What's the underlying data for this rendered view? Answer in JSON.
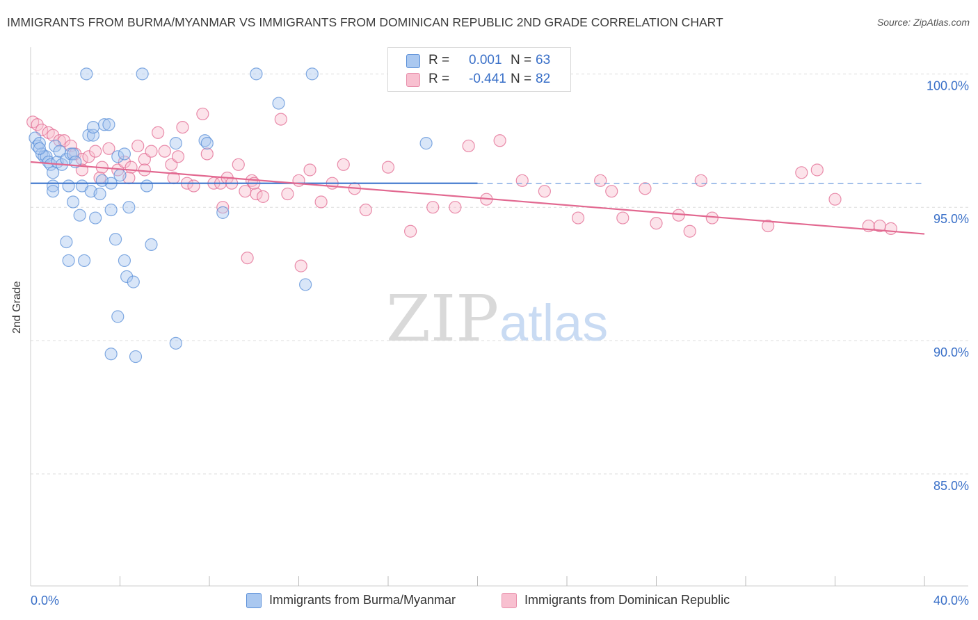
{
  "title": "IMMIGRANTS FROM BURMA/MYANMAR VS IMMIGRANTS FROM DOMINICAN REPUBLIC 2ND GRADE CORRELATION CHART",
  "source": "Source: ZipAtlas.com",
  "watermark": {
    "zip": "ZIP",
    "atlas": "atlas"
  },
  "legend": {
    "r_label": "R =",
    "n_label": "N =",
    "rows": [
      {
        "r": "0.001",
        "n": "63",
        "color": "#aac8f0",
        "border": "#5a8fd8"
      },
      {
        "r": "-0.441",
        "n": "82",
        "color": "#f8c0d0",
        "border": "#e890ac"
      }
    ]
  },
  "chart_data": {
    "type": "scatter",
    "xlabel": "",
    "ylabel": "2nd Grade",
    "xlim": [
      0,
      40
    ],
    "ylim": [
      80.8,
      101.0
    ],
    "x_tick_labels": [
      "0.0%",
      "40.0%"
    ],
    "y_ticks": [
      100,
      95,
      90,
      85
    ],
    "y_tick_labels": [
      "100.0%",
      "95.0%",
      "90.0%",
      "85.0%"
    ],
    "grid": true,
    "series": [
      {
        "name": "Immigrants from Burma/Myanmar",
        "color": "#5a8fd8",
        "fill": "#aac8f0",
        "trend": {
          "x0": 0,
          "y0": 95.9,
          "x1": 20,
          "y1": 95.9,
          "dash_to": 40
        },
        "points": [
          [
            0.2,
            97.6
          ],
          [
            0.3,
            97.3
          ],
          [
            0.4,
            97.4
          ],
          [
            0.5,
            97.0
          ],
          [
            0.6,
            96.9
          ],
          [
            0.7,
            96.9
          ],
          [
            0.8,
            96.7
          ],
          [
            0.9,
            96.6
          ],
          [
            1.0,
            96.3
          ],
          [
            1.1,
            97.3
          ],
          [
            1.2,
            96.7
          ],
          [
            1.3,
            97.1
          ],
          [
            1.4,
            96.6
          ],
          [
            1.6,
            96.8
          ],
          [
            1.8,
            97.0
          ],
          [
            1.9,
            97.0
          ],
          [
            2.0,
            96.7
          ],
          [
            2.5,
            100.0
          ],
          [
            2.6,
            97.7
          ],
          [
            2.8,
            97.7
          ],
          [
            3.3,
            98.1
          ],
          [
            3.5,
            98.1
          ],
          [
            3.9,
            96.9
          ],
          [
            4.2,
            97.0
          ],
          [
            5.0,
            100.0
          ],
          [
            2.8,
            98.0
          ],
          [
            1.7,
            95.8
          ],
          [
            1.0,
            95.8
          ],
          [
            2.3,
            95.8
          ],
          [
            2.7,
            95.6
          ],
          [
            3.6,
            95.9
          ],
          [
            3.2,
            96.0
          ],
          [
            4.0,
            96.2
          ],
          [
            5.2,
            95.8
          ],
          [
            1.0,
            95.6
          ],
          [
            1.9,
            95.2
          ],
          [
            3.1,
            95.5
          ],
          [
            4.4,
            95.0
          ],
          [
            2.2,
            94.7
          ],
          [
            2.9,
            94.6
          ],
          [
            3.6,
            94.9
          ],
          [
            1.6,
            93.7
          ],
          [
            3.8,
            93.8
          ],
          [
            5.4,
            93.6
          ],
          [
            1.7,
            93.0
          ],
          [
            2.4,
            93.0
          ],
          [
            4.2,
            93.0
          ],
          [
            4.3,
            92.4
          ],
          [
            4.6,
            92.2
          ],
          [
            3.9,
            90.9
          ],
          [
            6.5,
            89.9
          ],
          [
            3.6,
            89.5
          ],
          [
            4.7,
            89.4
          ],
          [
            10.1,
            100.0
          ],
          [
            12.6,
            100.0
          ],
          [
            11.1,
            98.9
          ],
          [
            7.8,
            97.5
          ],
          [
            7.9,
            97.4
          ],
          [
            17.7,
            97.4
          ],
          [
            8.6,
            94.8
          ],
          [
            12.3,
            92.1
          ],
          [
            0.4,
            97.2
          ],
          [
            6.5,
            97.4
          ]
        ]
      },
      {
        "name": "Immigrants from Dominican Republic",
        "color": "#e26890",
        "fill": "#f8c0d0",
        "trend": {
          "x0": 0,
          "y0": 96.7,
          "x1": 40,
          "y1": 94.0
        },
        "points": [
          [
            0.1,
            98.2
          ],
          [
            0.3,
            98.1
          ],
          [
            0.5,
            97.9
          ],
          [
            0.8,
            97.8
          ],
          [
            1.0,
            97.7
          ],
          [
            1.3,
            97.5
          ],
          [
            1.5,
            97.5
          ],
          [
            1.8,
            97.3
          ],
          [
            2.0,
            97.0
          ],
          [
            2.3,
            96.8
          ],
          [
            2.6,
            96.9
          ],
          [
            2.9,
            97.1
          ],
          [
            3.2,
            96.5
          ],
          [
            3.5,
            97.2
          ],
          [
            3.9,
            96.4
          ],
          [
            4.2,
            96.7
          ],
          [
            4.5,
            96.5
          ],
          [
            4.8,
            97.3
          ],
          [
            5.1,
            96.8
          ],
          [
            5.4,
            97.1
          ],
          [
            5.7,
            97.8
          ],
          [
            6.0,
            97.1
          ],
          [
            6.3,
            96.6
          ],
          [
            6.6,
            96.9
          ],
          [
            2.3,
            96.4
          ],
          [
            3.1,
            96.1
          ],
          [
            4.4,
            96.1
          ],
          [
            5.1,
            96.4
          ],
          [
            6.4,
            96.1
          ],
          [
            6.8,
            98.0
          ],
          [
            7.0,
            95.9
          ],
          [
            7.3,
            95.8
          ],
          [
            7.7,
            98.5
          ],
          [
            7.9,
            97.0
          ],
          [
            8.2,
            95.9
          ],
          [
            8.5,
            95.9
          ],
          [
            8.8,
            96.1
          ],
          [
            9.0,
            95.9
          ],
          [
            9.3,
            96.6
          ],
          [
            9.6,
            95.6
          ],
          [
            9.9,
            96.0
          ],
          [
            10.1,
            95.5
          ],
          [
            10.4,
            95.4
          ],
          [
            11.2,
            98.3
          ],
          [
            11.5,
            95.5
          ],
          [
            12.0,
            96.0
          ],
          [
            12.5,
            96.4
          ],
          [
            13.0,
            95.2
          ],
          [
            13.5,
            95.9
          ],
          [
            14.0,
            96.6
          ],
          [
            14.5,
            95.7
          ],
          [
            15.0,
            94.9
          ],
          [
            16.0,
            96.5
          ],
          [
            17.0,
            94.1
          ],
          [
            18.0,
            95.0
          ],
          [
            19.0,
            95.0
          ],
          [
            19.6,
            97.3
          ],
          [
            20.4,
            95.3
          ],
          [
            21.0,
            97.5
          ],
          [
            22.0,
            96.0
          ],
          [
            23.0,
            95.6
          ],
          [
            24.5,
            94.6
          ],
          [
            25.5,
            96.0
          ],
          [
            26.0,
            95.6
          ],
          [
            26.5,
            94.6
          ],
          [
            27.5,
            95.7
          ],
          [
            28.0,
            94.4
          ],
          [
            29.0,
            94.7
          ],
          [
            29.5,
            94.1
          ],
          [
            30.0,
            96.0
          ],
          [
            30.5,
            94.6
          ],
          [
            33.0,
            94.3
          ],
          [
            34.5,
            96.3
          ],
          [
            35.2,
            96.4
          ],
          [
            36.0,
            95.3
          ],
          [
            37.5,
            94.3
          ],
          [
            38.0,
            94.3
          ],
          [
            38.5,
            94.2
          ],
          [
            8.6,
            95.0
          ],
          [
            10.0,
            95.9
          ],
          [
            12.1,
            92.8
          ],
          [
            9.7,
            93.1
          ]
        ]
      }
    ]
  },
  "bottom_legend": [
    {
      "label": "Immigrants from Burma/Myanmar"
    },
    {
      "label": "Immigrants from Dominican Republic"
    }
  ]
}
